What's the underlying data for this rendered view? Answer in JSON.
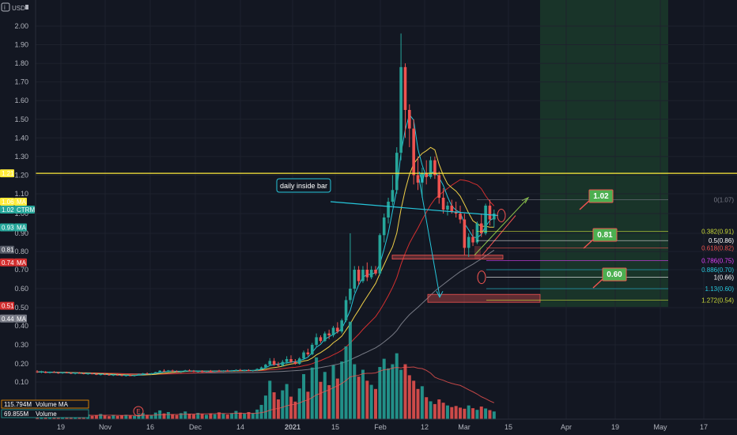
{
  "header": {
    "currency": "USD",
    "info_icon": "info-icon"
  },
  "colors": {
    "background": "#131722",
    "grid": "#1e222d",
    "up": "#26a69a",
    "down": "#ef5350",
    "yellow": "#ffeb3b",
    "cyan": "#26c6da",
    "ma_orange": "#f0d048",
    "ma_red": "#d32f2f",
    "ma_gray": "#787b86",
    "green_tag": "#4caf50",
    "highlight_green": "#1b3a2a"
  },
  "chart_data": {
    "type": "candlestick",
    "symbol": "CTRM",
    "y_ticks": [
      "2.00",
      "1.90",
      "1.80",
      "1.70",
      "1.60",
      "1.50",
      "1.40",
      "1.30",
      "1.20",
      "1.10",
      "1.00",
      "0.90",
      "0.80",
      "0.70",
      "0.60",
      "0.50",
      "0.40",
      "0.30",
      "0.20",
      "0.10"
    ],
    "x_ticks": [
      "19",
      "Nov",
      "16",
      "Dec",
      "14",
      "2021",
      "15",
      "Feb",
      "12",
      "Mar",
      "15",
      "Apr",
      "19",
      "May",
      "17"
    ],
    "price_tags": [
      {
        "label": "1.21",
        "value": 1.21,
        "color": "#ffeb3b",
        "text_color": "#131722",
        "suffix": ""
      },
      {
        "label": "1.06",
        "value": 1.06,
        "color": "#ffeb3b",
        "text_color": "#131722",
        "suffix": "MA"
      },
      {
        "label": "1.02",
        "value": 1.02,
        "color": "#26a69a",
        "text_color": "#ffffff",
        "suffix": "CTRM"
      },
      {
        "label": "0.93",
        "value": 0.93,
        "color": "#26a69a",
        "text_color": "#ffffff",
        "suffix": "MA"
      },
      {
        "label": "0.81",
        "value": 0.81,
        "color": "#555a66",
        "text_color": "#ffffff",
        "suffix": ""
      },
      {
        "label": "0.74",
        "value": 0.74,
        "color": "#d32f2f",
        "text_color": "#ffffff",
        "suffix": "MA"
      },
      {
        "label": "0.51",
        "value": 0.51,
        "color": "#d32f2f",
        "text_color": "#ffffff",
        "suffix": ""
      },
      {
        "label": "0.44",
        "value": 0.44,
        "color": "#787b86",
        "text_color": "#ffffff",
        "suffix": "MA"
      }
    ],
    "volume_tags": [
      {
        "label": "115.794M",
        "suffix": "Volume MA",
        "color": "#ff9800"
      },
      {
        "label": "69.855M",
        "suffix": "Volume",
        "color": "#26a69a"
      }
    ],
    "horizontal_line": {
      "value": 1.21,
      "color": "#ffeb3b"
    },
    "fib_levels": [
      {
        "label": "0(1.07)",
        "value": 1.07,
        "color": "#787b86"
      },
      {
        "label": "0.382(0.91)",
        "value": 0.91,
        "color": "#cddc39"
      },
      {
        "label": "0.5(0.86)",
        "value": 0.86,
        "color": "#ffffff"
      },
      {
        "label": "0.618(0.82)",
        "value": 0.82,
        "color": "#ef5350"
      },
      {
        "label": "0.786(0.75)",
        "value": 0.75,
        "color": "#e040fb"
      },
      {
        "label": "0.886(0.70)",
        "value": 0.7,
        "color": "#26c6da"
      },
      {
        "label": "1(0.66)",
        "value": 0.66,
        "color": "#ffffff"
      },
      {
        "label": "1.13(0.60)",
        "value": 0.6,
        "color": "#26c6da"
      },
      {
        "label": "1.272(0.54)",
        "value": 0.54,
        "color": "#cddc39"
      }
    ],
    "targets": [
      {
        "label": "1.02",
        "value": 1.02
      },
      {
        "label": "0.81",
        "value": 0.81
      },
      {
        "label": "0.60",
        "value": 0.6
      }
    ],
    "annotation": {
      "text": "daily inside bar"
    },
    "event_marker": "E",
    "candles": [
      [
        0.158,
        0.165,
        0.15,
        0.155
      ],
      [
        0.155,
        0.162,
        0.148,
        0.157
      ],
      [
        0.157,
        0.16,
        0.148,
        0.15
      ],
      [
        0.15,
        0.158,
        0.147,
        0.155
      ],
      [
        0.155,
        0.16,
        0.15,
        0.152
      ],
      [
        0.152,
        0.156,
        0.145,
        0.148
      ],
      [
        0.148,
        0.155,
        0.145,
        0.153
      ],
      [
        0.153,
        0.157,
        0.148,
        0.15
      ],
      [
        0.15,
        0.154,
        0.144,
        0.146
      ],
      [
        0.146,
        0.152,
        0.142,
        0.15
      ],
      [
        0.15,
        0.155,
        0.146,
        0.148
      ],
      [
        0.148,
        0.152,
        0.142,
        0.144
      ],
      [
        0.144,
        0.15,
        0.14,
        0.147
      ],
      [
        0.147,
        0.152,
        0.143,
        0.145
      ],
      [
        0.145,
        0.148,
        0.138,
        0.14
      ],
      [
        0.14,
        0.146,
        0.136,
        0.143
      ],
      [
        0.143,
        0.148,
        0.139,
        0.141
      ],
      [
        0.141,
        0.145,
        0.135,
        0.137
      ],
      [
        0.137,
        0.143,
        0.133,
        0.14
      ],
      [
        0.14,
        0.146,
        0.136,
        0.138
      ],
      [
        0.138,
        0.142,
        0.132,
        0.134
      ],
      [
        0.134,
        0.14,
        0.13,
        0.137
      ],
      [
        0.137,
        0.142,
        0.133,
        0.135
      ],
      [
        0.135,
        0.14,
        0.13,
        0.138
      ],
      [
        0.138,
        0.145,
        0.135,
        0.143
      ],
      [
        0.143,
        0.15,
        0.14,
        0.147
      ],
      [
        0.147,
        0.153,
        0.143,
        0.145
      ],
      [
        0.145,
        0.15,
        0.141,
        0.148
      ],
      [
        0.148,
        0.156,
        0.145,
        0.154
      ],
      [
        0.154,
        0.165,
        0.15,
        0.162
      ],
      [
        0.162,
        0.17,
        0.155,
        0.158
      ],
      [
        0.158,
        0.166,
        0.154,
        0.163
      ],
      [
        0.163,
        0.168,
        0.156,
        0.159
      ],
      [
        0.159,
        0.164,
        0.152,
        0.156
      ],
      [
        0.156,
        0.162,
        0.15,
        0.16
      ],
      [
        0.16,
        0.167,
        0.156,
        0.164
      ],
      [
        0.164,
        0.17,
        0.158,
        0.161
      ],
      [
        0.161,
        0.166,
        0.154,
        0.157
      ],
      [
        0.157,
        0.163,
        0.152,
        0.16
      ],
      [
        0.16,
        0.165,
        0.155,
        0.158
      ],
      [
        0.158,
        0.163,
        0.153,
        0.161
      ],
      [
        0.161,
        0.166,
        0.156,
        0.159
      ],
      [
        0.159,
        0.164,
        0.154,
        0.162
      ],
      [
        0.162,
        0.167,
        0.157,
        0.16
      ],
      [
        0.16,
        0.165,
        0.155,
        0.163
      ],
      [
        0.163,
        0.168,
        0.158,
        0.161
      ],
      [
        0.161,
        0.166,
        0.156,
        0.164
      ],
      [
        0.164,
        0.17,
        0.159,
        0.166
      ],
      [
        0.166,
        0.172,
        0.161,
        0.163
      ],
      [
        0.163,
        0.168,
        0.158,
        0.165
      ],
      [
        0.165,
        0.17,
        0.16,
        0.162
      ],
      [
        0.162,
        0.167,
        0.157,
        0.165
      ],
      [
        0.165,
        0.175,
        0.16,
        0.172
      ],
      [
        0.172,
        0.185,
        0.168,
        0.18
      ],
      [
        0.18,
        0.2,
        0.175,
        0.195
      ],
      [
        0.195,
        0.23,
        0.19,
        0.215
      ],
      [
        0.215,
        0.23,
        0.19,
        0.195
      ],
      [
        0.195,
        0.21,
        0.18,
        0.19
      ],
      [
        0.19,
        0.22,
        0.185,
        0.21
      ],
      [
        0.21,
        0.24,
        0.2,
        0.225
      ],
      [
        0.225,
        0.245,
        0.205,
        0.21
      ],
      [
        0.21,
        0.225,
        0.195,
        0.2
      ],
      [
        0.2,
        0.235,
        0.195,
        0.228
      ],
      [
        0.228,
        0.27,
        0.22,
        0.26
      ],
      [
        0.26,
        0.28,
        0.24,
        0.25
      ],
      [
        0.25,
        0.31,
        0.245,
        0.3
      ],
      [
        0.3,
        0.36,
        0.29,
        0.34
      ],
      [
        0.34,
        0.35,
        0.31,
        0.32
      ],
      [
        0.32,
        0.37,
        0.315,
        0.36
      ],
      [
        0.36,
        0.38,
        0.33,
        0.35
      ],
      [
        0.35,
        0.4,
        0.34,
        0.39
      ],
      [
        0.39,
        0.42,
        0.36,
        0.37
      ],
      [
        0.37,
        0.44,
        0.36,
        0.43
      ],
      [
        0.43,
        0.56,
        0.42,
        0.54
      ],
      [
        0.54,
        0.9,
        0.52,
        0.6
      ],
      [
        0.6,
        0.72,
        0.58,
        0.7
      ],
      [
        0.7,
        0.72,
        0.62,
        0.64
      ],
      [
        0.64,
        0.72,
        0.63,
        0.7
      ],
      [
        0.7,
        0.74,
        0.64,
        0.66
      ],
      [
        0.66,
        0.72,
        0.65,
        0.7
      ],
      [
        0.7,
        0.72,
        0.67,
        0.68
      ],
      [
        0.68,
        0.9,
        0.67,
        0.89
      ],
      [
        0.89,
        1.0,
        0.85,
        0.98
      ],
      [
        0.98,
        1.08,
        0.95,
        1.06
      ],
      [
        1.06,
        1.2,
        1.04,
        1.12
      ],
      [
        1.12,
        1.35,
        1.1,
        1.32
      ],
      [
        1.32,
        1.96,
        1.28,
        1.78
      ],
      [
        1.78,
        1.8,
        1.4,
        1.55
      ],
      [
        1.55,
        1.58,
        1.35,
        1.45
      ],
      [
        1.45,
        1.5,
        1.15,
        1.2
      ],
      [
        1.2,
        1.3,
        1.12,
        1.16
      ],
      [
        1.16,
        1.24,
        1.08,
        1.21
      ],
      [
        1.21,
        1.28,
        1.15,
        1.19
      ],
      [
        1.19,
        1.3,
        1.18,
        1.28
      ],
      [
        1.28,
        1.3,
        1.18,
        1.2
      ],
      [
        1.2,
        1.22,
        1.05,
        1.08
      ],
      [
        1.08,
        1.13,
        1.0,
        1.02
      ],
      [
        1.02,
        1.06,
        0.99,
        1.04
      ],
      [
        1.04,
        1.07,
        1.0,
        1.01
      ],
      [
        1.01,
        1.06,
        0.98,
        1.0
      ],
      [
        1.0,
        1.04,
        0.95,
        0.97
      ],
      [
        0.97,
        1.0,
        0.78,
        0.82
      ],
      [
        0.82,
        0.9,
        0.77,
        0.88
      ],
      [
        0.88,
        0.92,
        0.83,
        0.85
      ],
      [
        0.85,
        0.96,
        0.84,
        0.95
      ],
      [
        0.95,
        1.0,
        0.88,
        0.9
      ],
      [
        0.9,
        1.05,
        0.89,
        1.04
      ],
      [
        1.04,
        1.07,
        0.94,
        0.97
      ],
      [
        0.97,
        1.02,
        0.93,
        1.0
      ]
    ],
    "volumes": [
      2,
      1.5,
      1.2,
      1.8,
      1.4,
      1.1,
      1.6,
      1.3,
      1.2,
      1.5,
      1.1,
      1.3,
      1.7,
      1.2,
      1.4,
      1.9,
      1.3,
      1.1,
      1.5,
      1.2,
      1.4,
      1.6,
      1.3,
      1.2,
      1.8,
      2.2,
      1.6,
      1.4,
      2.4,
      3.2,
      2.1,
      2.6,
      1.8,
      1.5,
      2.2,
      2.8,
      2.0,
      1.7,
      2.3,
      1.9,
      1.6,
      2.1,
      1.8,
      2.5,
      2.0,
      1.7,
      2.2,
      3.0,
      2.4,
      2.0,
      2.6,
      2.2,
      3.5,
      5.2,
      8.6,
      14.0,
      9.8,
      7.2,
      10.5,
      12.8,
      8.2,
      6.4,
      11.2,
      16.4,
      10.0,
      18.8,
      22.5,
      13.6,
      17.2,
      12.4,
      19.6,
      14.8,
      21.0,
      26.5,
      35.5,
      20.0,
      15.5,
      18.0,
      14.0,
      12.5,
      11.0,
      19.0,
      22.0,
      18.5,
      20.0,
      24.0,
      18.0,
      20.0,
      16.0,
      14.0,
      11.0,
      12.0,
      8.0,
      6.5,
      5.5,
      7.2,
      6.0,
      5.0,
      4.4,
      4.8,
      4.2,
      3.8,
      5.0,
      4.0,
      3.4,
      4.6,
      3.9,
      3.3,
      2.8
    ]
  }
}
